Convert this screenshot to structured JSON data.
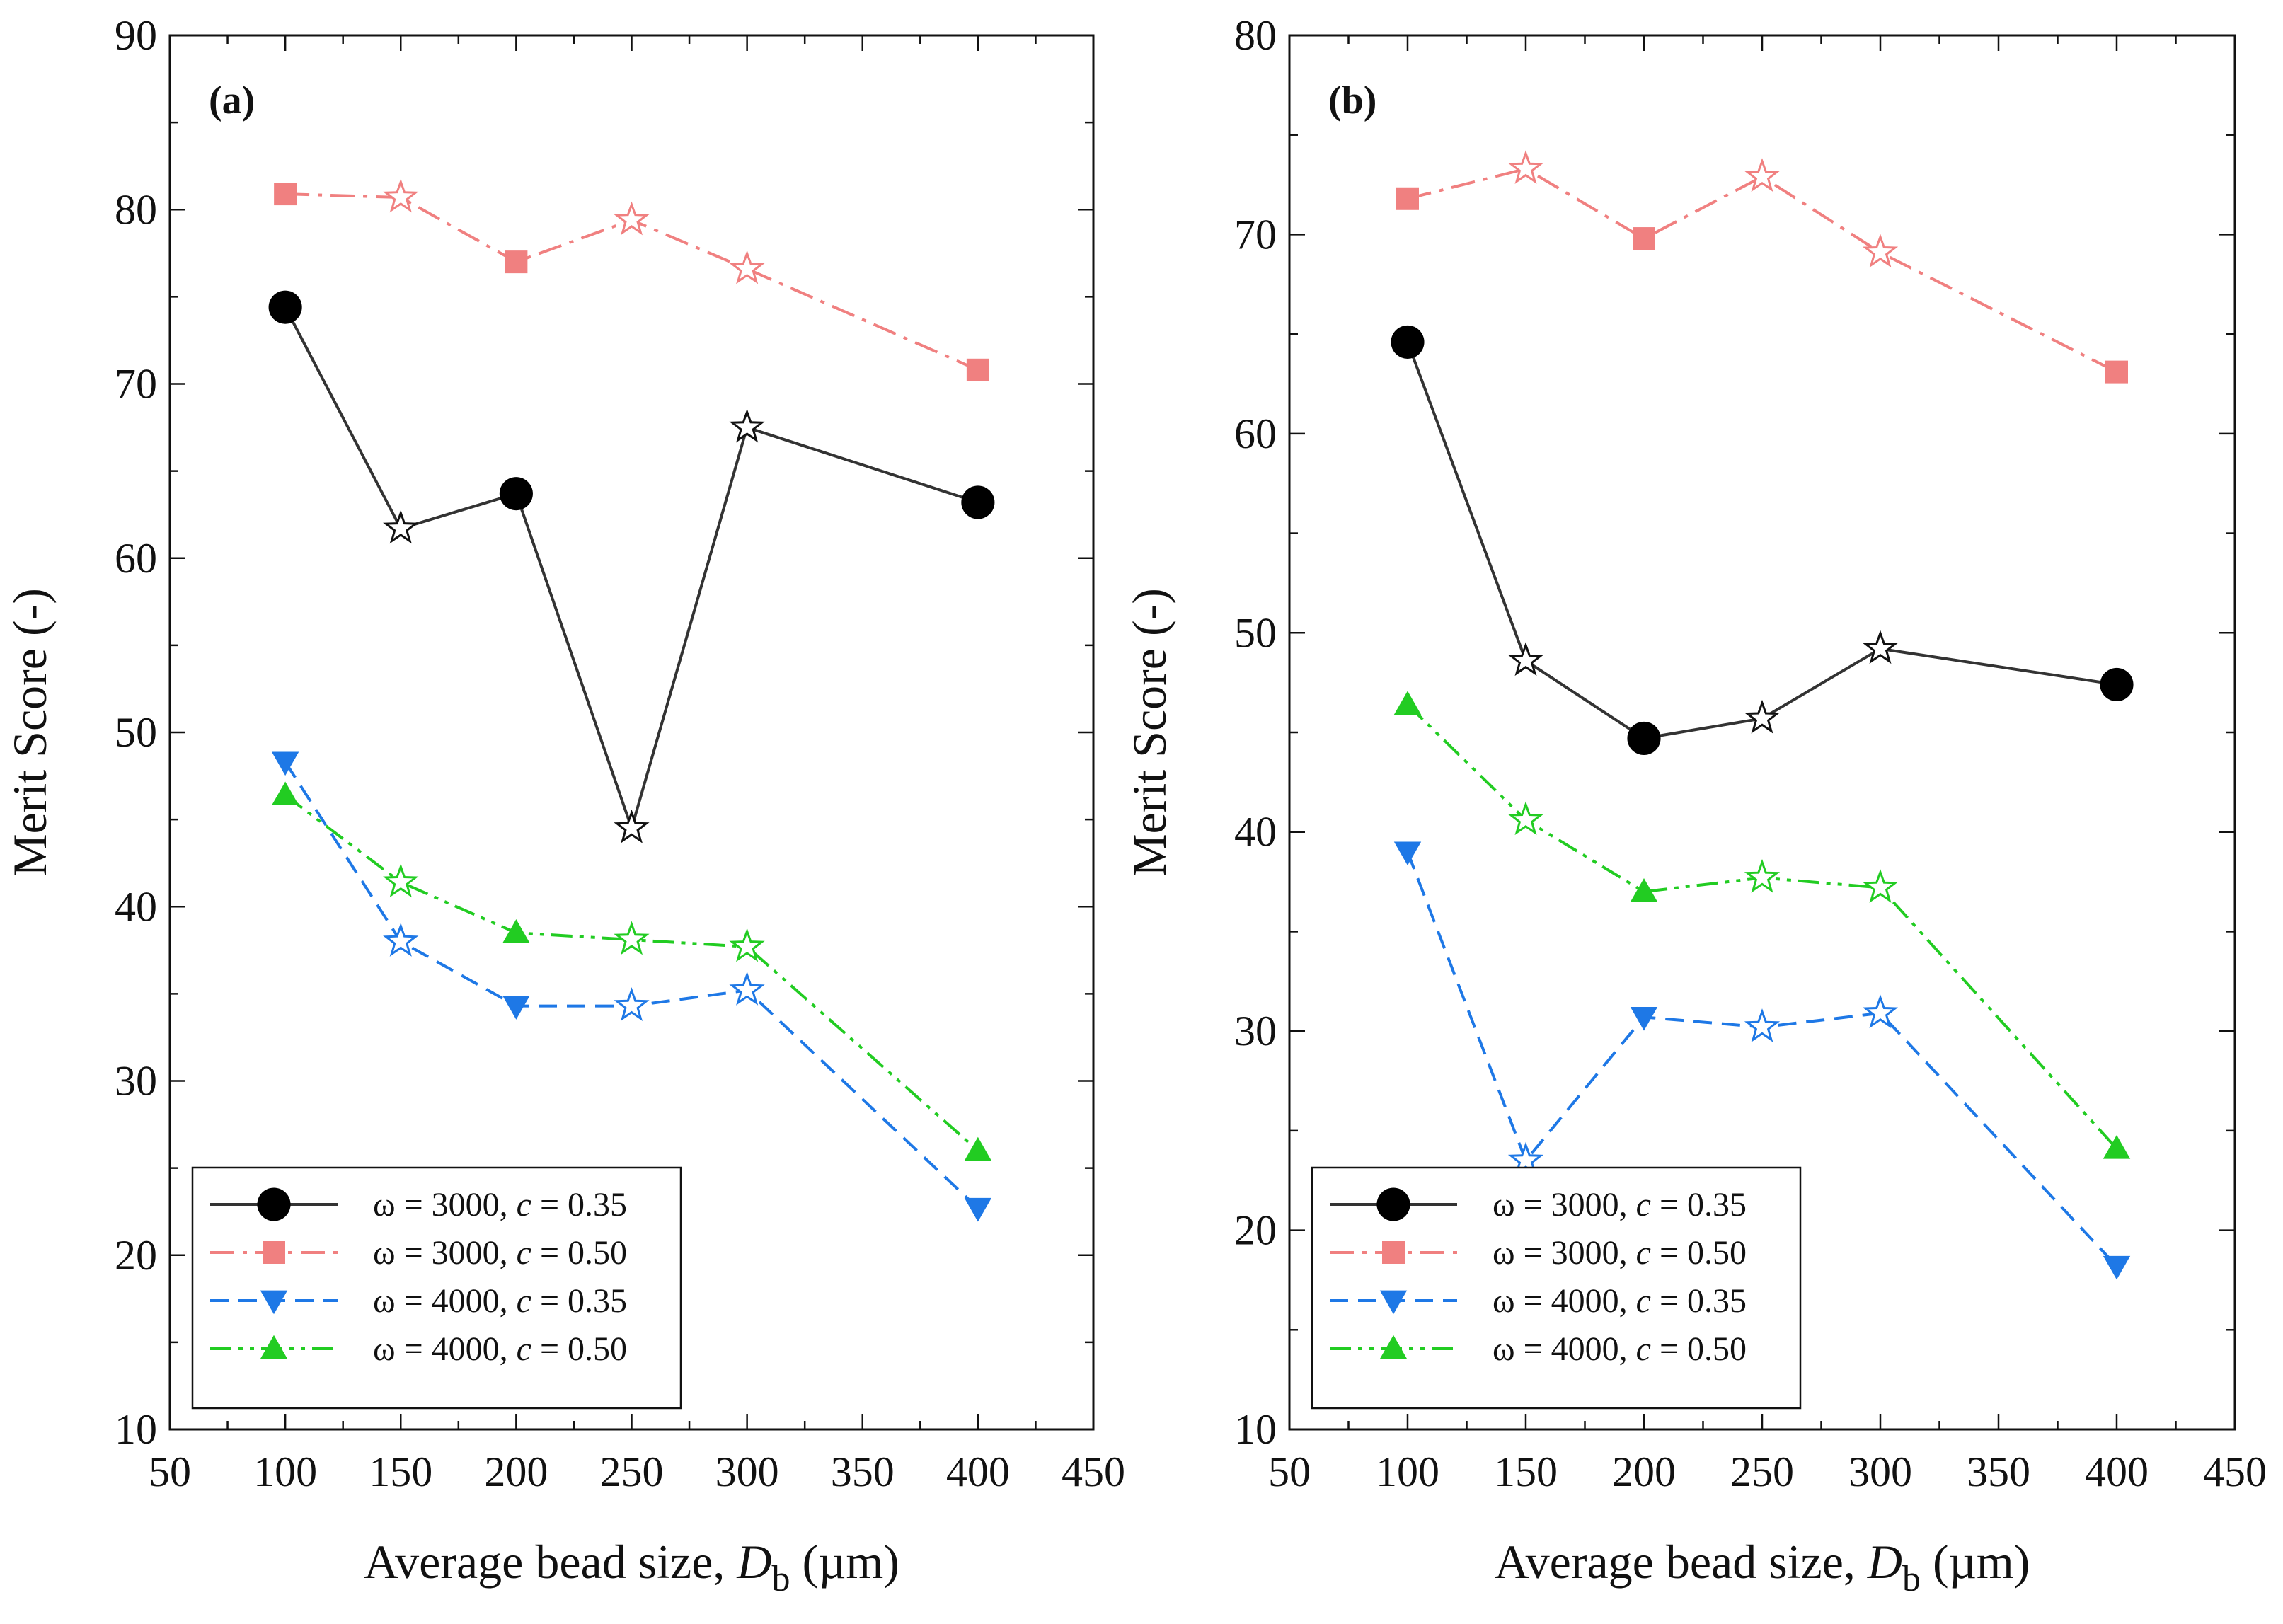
{
  "chart_data": [
    {
      "type": "line",
      "panel_label": "(a)",
      "xlabel": "Average bead size, D_b (µm)",
      "xlabel_parts": {
        "prefix": "Average bead size, ",
        "var": "D",
        "sub": "b",
        "suffix": " (µm)"
      },
      "ylabel": "Merit Score (-)",
      "xlim": [
        50,
        450
      ],
      "ylim": [
        10,
        90
      ],
      "xticks": [
        "50",
        "100",
        "150",
        "200",
        "250",
        "300",
        "350",
        "400",
        "450"
      ],
      "yticks": [
        "10",
        "20",
        "30",
        "40",
        "50",
        "60",
        "70",
        "80",
        "90"
      ],
      "x": [
        100,
        150,
        200,
        250,
        300,
        400
      ],
      "legend_position": "bottom-left",
      "series": [
        {
          "name": "ω = 3000, c = 0.35",
          "legend_pre": "ω = 3000, ",
          "legend_var": "c",
          "legend_post": " = 0.35",
          "color": "#333333",
          "marker": "circle",
          "dash": "solid",
          "values": [
            74.4,
            61.7,
            63.7,
            44.5,
            67.5,
            63.2
          ],
          "open_star": [
            false,
            true,
            false,
            true,
            true,
            false
          ]
        },
        {
          "name": "ω = 3000, c = 0.50",
          "legend_pre": "ω = 3000, ",
          "legend_var": "c",
          "legend_post": " = 0.50",
          "color": "#f08080",
          "marker": "square",
          "dash": "dashdot",
          "values": [
            80.9,
            80.7,
            77.0,
            79.4,
            76.6,
            70.8
          ],
          "open_star": [
            false,
            true,
            false,
            true,
            true,
            false
          ]
        },
        {
          "name": "ω = 4000, c = 0.35",
          "legend_pre": "ω = 4000, ",
          "legend_var": "c",
          "legend_post": " = 0.35",
          "color": "#1e78e6",
          "marker": "triangle-down",
          "dash": "dashed",
          "values": [
            48.3,
            38.0,
            34.3,
            34.3,
            35.2,
            22.7
          ],
          "open_star": [
            false,
            true,
            false,
            true,
            true,
            false
          ]
        },
        {
          "name": "ω = 4000, c = 0.50",
          "legend_pre": "ω = 4000, ",
          "legend_var": "c",
          "legend_post": " = 0.50",
          "color": "#22cc22",
          "marker": "triangle-up",
          "dash": "dashdotdot",
          "values": [
            46.4,
            41.4,
            38.5,
            38.1,
            37.7,
            26.0
          ],
          "open_star": [
            false,
            true,
            false,
            true,
            true,
            false
          ]
        }
      ]
    },
    {
      "type": "line",
      "panel_label": "(b)",
      "xlabel": "Average bead size, D_b (µm)",
      "xlabel_parts": {
        "prefix": "Average bead size, ",
        "var": "D",
        "sub": "b",
        "suffix": " (µm)"
      },
      "ylabel": "Merit Score (-)",
      "xlim": [
        50,
        450
      ],
      "ylim": [
        10,
        80
      ],
      "xticks": [
        "50",
        "100",
        "150",
        "200",
        "250",
        "300",
        "350",
        "400",
        "450"
      ],
      "yticks": [
        "10",
        "20",
        "30",
        "40",
        "50",
        "60",
        "70",
        "80"
      ],
      "x": [
        100,
        150,
        200,
        250,
        300,
        400
      ],
      "legend_position": "bottom-left",
      "series": [
        {
          "name": "ω = 3000, c = 0.35",
          "legend_pre": "ω = 3000, ",
          "legend_var": "c",
          "legend_post": " = 0.35",
          "color": "#333333",
          "marker": "circle",
          "dash": "solid",
          "values": [
            64.6,
            48.6,
            44.7,
            45.7,
            49.2,
            47.4
          ],
          "open_star": [
            false,
            true,
            false,
            true,
            true,
            false
          ]
        },
        {
          "name": "ω = 3000, c = 0.50",
          "legend_pre": "ω = 3000, ",
          "legend_var": "c",
          "legend_post": " = 0.50",
          "color": "#f08080",
          "marker": "square",
          "dash": "dashdot",
          "values": [
            71.8,
            73.3,
            69.8,
            72.9,
            69.1,
            63.1
          ],
          "open_star": [
            false,
            true,
            false,
            true,
            true,
            false
          ]
        },
        {
          "name": "ω = 4000, c = 0.35",
          "legend_pre": "ω = 4000, ",
          "legend_var": "c",
          "legend_post": " = 0.35",
          "color": "#1e78e6",
          "marker": "triangle-down",
          "dash": "dashed",
          "values": [
            39.0,
            23.5,
            30.7,
            30.2,
            30.9,
            18.2
          ],
          "open_star": [
            false,
            true,
            false,
            true,
            true,
            false
          ]
        },
        {
          "name": "ω = 4000, c = 0.50",
          "legend_pre": "ω = 4000, ",
          "legend_var": "c",
          "legend_post": " = 0.50",
          "color": "#22cc22",
          "marker": "triangle-up",
          "dash": "dashdotdot",
          "values": [
            46.4,
            40.6,
            37.0,
            37.7,
            37.2,
            24.1
          ],
          "open_star": [
            false,
            true,
            false,
            true,
            true,
            false
          ]
        }
      ]
    }
  ]
}
